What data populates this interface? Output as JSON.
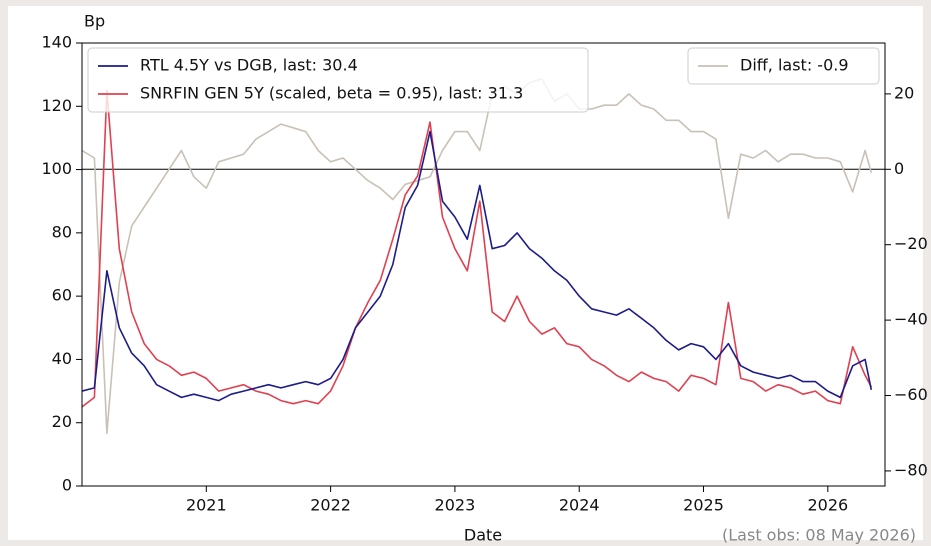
{
  "chart_data": {
    "type": "line",
    "y_label": "Bp",
    "x_label": "Date",
    "annotation": "(Last obs: 08 May 2026)",
    "x": [
      2020.0,
      2020.1,
      2020.2,
      2020.3,
      2020.4,
      2020.5,
      2020.6,
      2020.7,
      2020.8,
      2020.9,
      2021.0,
      2021.1,
      2021.2,
      2021.3,
      2021.4,
      2021.5,
      2021.6,
      2021.7,
      2021.8,
      2021.9,
      2022.0,
      2022.1,
      2022.2,
      2022.3,
      2022.4,
      2022.5,
      2022.6,
      2022.7,
      2022.8,
      2022.9,
      2023.0,
      2023.1,
      2023.2,
      2023.3,
      2023.4,
      2023.5,
      2023.6,
      2023.7,
      2023.8,
      2023.9,
      2024.0,
      2024.1,
      2024.2,
      2024.3,
      2024.4,
      2024.5,
      2024.6,
      2024.7,
      2024.8,
      2024.9,
      2025.0,
      2025.1,
      2025.2,
      2025.3,
      2025.4,
      2025.5,
      2025.6,
      2025.7,
      2025.8,
      2025.9,
      2026.0,
      2026.1,
      2026.2,
      2026.3,
      2026.35
    ],
    "series": [
      {
        "name": "RTL 4.5Y vs DGB, last: 30.4",
        "color": "#1c1c8a",
        "axis": "y",
        "values": [
          30,
          31,
          68,
          50,
          42,
          38,
          32,
          30,
          28,
          29,
          28,
          27,
          29,
          30,
          31,
          32,
          31,
          32,
          33,
          32,
          34,
          40,
          50,
          55,
          60,
          70,
          88,
          95,
          112,
          90,
          85,
          78,
          95,
          75,
          76,
          80,
          75,
          72,
          68,
          65,
          60,
          56,
          55,
          54,
          56,
          53,
          50,
          46,
          43,
          45,
          44,
          40,
          45,
          38,
          36,
          35,
          34,
          35,
          33,
          33,
          30,
          28,
          38,
          40,
          30.4
        ]
      },
      {
        "name": "SNRFIN GEN 5Y (scaled, beta = 0.95), last: 31.3",
        "color": "#e0404f",
        "axis": "y",
        "values": [
          25,
          28,
          125,
          75,
          55,
          45,
          40,
          38,
          35,
          36,
          34,
          30,
          31,
          32,
          30,
          29,
          27,
          26,
          27,
          26,
          30,
          38,
          50,
          58,
          65,
          78,
          92,
          98,
          115,
          85,
          75,
          68,
          90,
          55,
          52,
          60,
          52,
          48,
          50,
          45,
          44,
          40,
          38,
          35,
          33,
          36,
          34,
          33,
          30,
          35,
          34,
          32,
          58,
          34,
          33,
          30,
          32,
          31,
          29,
          30,
          27,
          26,
          44,
          35,
          31.3
        ]
      },
      {
        "name": "Diff, last: -0.9",
        "color": "#c9c1b6",
        "axis": "y2",
        "values": [
          5,
          3,
          -70,
          -30,
          -15,
          -10,
          -5,
          0,
          5,
          -2,
          -5,
          2,
          3,
          4,
          8,
          10,
          12,
          11,
          10,
          5,
          2,
          3,
          0,
          -3,
          -5,
          -8,
          -4,
          -3,
          -2,
          5,
          10,
          10,
          5,
          20,
          22,
          20,
          23,
          24,
          18,
          20,
          16,
          16,
          17,
          17,
          20,
          17,
          16,
          13,
          13,
          10,
          10,
          8,
          -13,
          4,
          3,
          5,
          2,
          4,
          4,
          3,
          3,
          2,
          -6,
          5,
          -0.9
        ]
      }
    ],
    "xlim": [
      2020.0,
      2026.46
    ],
    "xticks": [
      2021,
      2022,
      2023,
      2024,
      2025,
      2026
    ],
    "ylim": [
      0,
      140
    ],
    "yticks": [
      0,
      20,
      40,
      60,
      80,
      100,
      120,
      140
    ],
    "y2lim": [
      -84,
      33.5
    ],
    "y2ticks": [
      20,
      0,
      {
        "value": -20,
        "label": "−20"
      },
      {
        "value": -40,
        "label": "−40"
      },
      {
        "value": -60,
        "label": "−60"
      },
      {
        "value": -80,
        "label": "−80"
      }
    ],
    "y2_zero_line": true
  }
}
